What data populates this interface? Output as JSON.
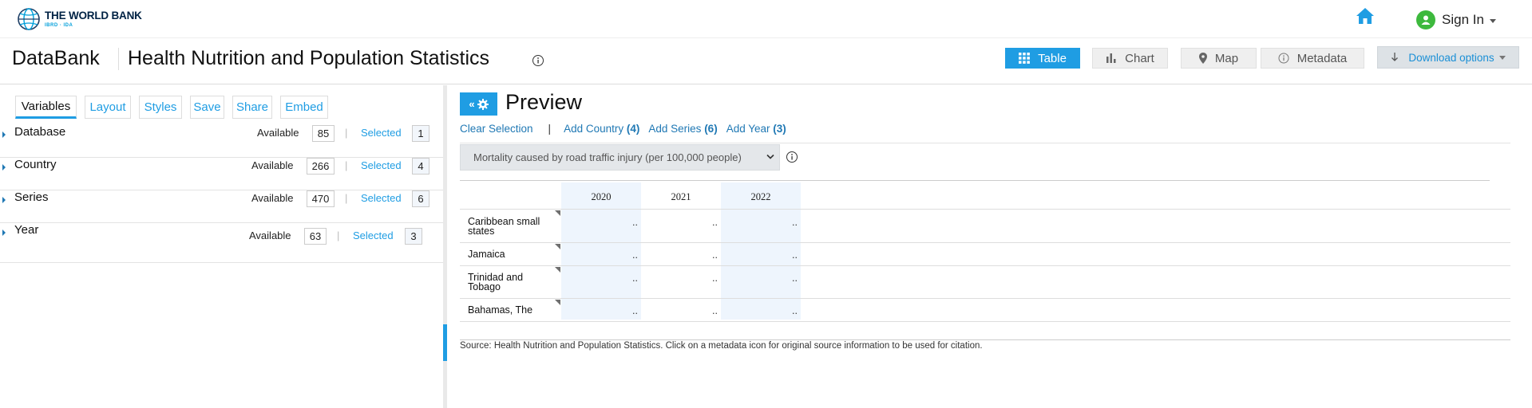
{
  "header": {
    "logo_name": "THE WORLD BANK",
    "logo_sub": "IBRD · IDA",
    "sign_in": "Sign In"
  },
  "titlebar": {
    "app_name": "DataBank",
    "title": "Health Nutrition and Population Statistics",
    "views": [
      "Table",
      "Chart",
      "Map",
      "Metadata"
    ],
    "active_view": "Table",
    "download": "Download options"
  },
  "left": {
    "tabs": [
      "Variables",
      "Layout",
      "Styles",
      "Save",
      "Share",
      "Embed"
    ],
    "active_tab": "Variables",
    "available_label": "Available",
    "selected_label": "Selected",
    "variables": [
      {
        "name": "Database",
        "available": "85",
        "selected": "1"
      },
      {
        "name": "Country",
        "available": "266",
        "selected": "4"
      },
      {
        "name": "Series",
        "available": "470",
        "selected": "6"
      },
      {
        "name": "Year",
        "available": "63",
        "selected": "3"
      }
    ]
  },
  "preview": {
    "title": "Preview",
    "clear": "Clear Selection",
    "separator": "|",
    "add_country": "Add Country",
    "add_country_count": "(4)",
    "add_series": "Add Series",
    "add_series_count": "(6)",
    "add_year": "Add Year",
    "add_year_count": "(3)",
    "series_selected": "Mortality caused by road traffic injury (per 100,000 people)",
    "years": [
      "2020",
      "2021",
      "2022"
    ],
    "rows": [
      {
        "country": "Caribbean small states",
        "values": [
          "..",
          "..",
          ".."
        ]
      },
      {
        "country": "Jamaica",
        "values": [
          "..",
          "..",
          ".."
        ]
      },
      {
        "country": "Trinidad and Tobago",
        "values": [
          "..",
          "..",
          ".."
        ]
      },
      {
        "country": "Bahamas, The",
        "values": [
          "..",
          "..",
          ".."
        ]
      }
    ],
    "source": "Source: Health Nutrition and Population Statistics. Click on a metadata icon for original source information to be used for citation."
  },
  "colors": {
    "accent": "#1f9de3",
    "link": "#1f78b4",
    "year_column": "#eef5fd"
  },
  "icons": [
    "globe-logo-icon",
    "home-icon",
    "user-icon",
    "info-icon",
    "grid-icon",
    "bar-chart-icon",
    "map-pin-icon",
    "download-arrow-icon",
    "gear-icon",
    "chevron-down-icon"
  ]
}
